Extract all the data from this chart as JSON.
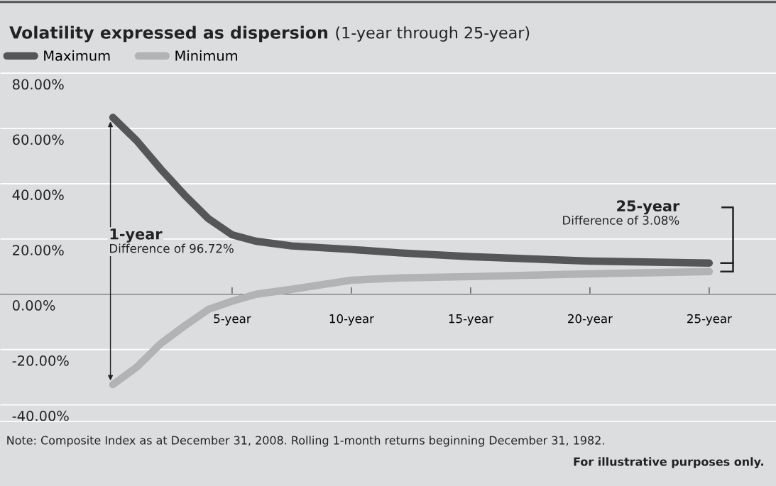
{
  "chart_data": {
    "type": "line",
    "title": "Volatility expressed as dispersion",
    "subtitle": "(1-year through 25-year)",
    "series": [
      {
        "name": "Maximum",
        "color": "#555658",
        "x": [
          0,
          1,
          2,
          3,
          4,
          5,
          6,
          7.5,
          10,
          12,
          15,
          20,
          25
        ],
        "values": [
          64.0,
          55.6,
          45.4,
          36.0,
          27.4,
          21.5,
          19.2,
          17.5,
          16.2,
          15.0,
          13.6,
          12.0,
          11.3
        ]
      },
      {
        "name": "Minimum",
        "color": "#b2b3b5",
        "x": [
          0,
          1,
          2,
          3,
          4,
          5,
          6,
          7.5,
          10,
          12,
          15,
          20,
          25
        ],
        "values": [
          -32.7,
          -26.4,
          -17.9,
          -11.5,
          -5.5,
          -2.5,
          0.0,
          1.8,
          5.1,
          5.9,
          6.4,
          7.4,
          8.2
        ]
      }
    ],
    "xlim": [
      -4.73,
      27.8
    ],
    "xticks": [
      {
        "value": 5,
        "label": "5-year"
      },
      {
        "value": 10,
        "label": "10-year"
      },
      {
        "value": 15,
        "label": "15-year"
      },
      {
        "value": 20,
        "label": "20-year"
      },
      {
        "value": 25,
        "label": "25-year"
      }
    ],
    "ylim": [
      -46,
      81
    ],
    "yticks": [
      {
        "value": -40,
        "label": "-40.00%"
      },
      {
        "value": -20,
        "label": "-20.00%"
      },
      {
        "value": 0,
        "label": "0.00%"
      },
      {
        "value": 20,
        "label": "20.00%"
      },
      {
        "value": 40,
        "label": "40.00%"
      },
      {
        "value": 60,
        "label": "60.00%"
      },
      {
        "value": 80,
        "label": "80.00%"
      }
    ],
    "grid": "y",
    "legend": "top left",
    "annotations": [
      "1-year",
      "Difference of 96.72%",
      "25-year",
      "Difference of 3.08%",
      "Note: Composite Index as at December 31, 2008. Rolling 1-month returns beginning December 31, 1982.",
      "For illustrative purposes only."
    ]
  }
}
